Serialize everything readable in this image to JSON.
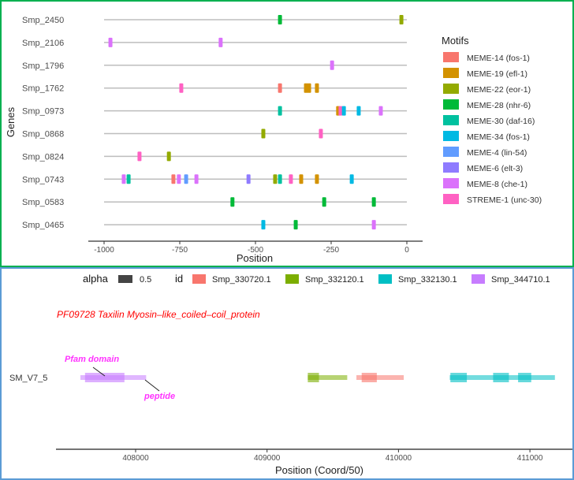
{
  "chart_data": [
    {
      "type": "motif-track",
      "xlabel": "Position",
      "ylabel": "Genes",
      "xlim": [
        -1050,
        10
      ],
      "xticks": [
        -1000,
        -750,
        -500,
        -250,
        0
      ],
      "xtick_labels": [
        "-1000",
        "-750",
        "-500",
        "-250",
        "0"
      ],
      "legend_title": "Motifs",
      "legend_position": "right",
      "legend": [
        {
          "name": "MEME-14 (fos-1)",
          "color": "#F8766D"
        },
        {
          "name": "MEME-19 (efl-1)",
          "color": "#D39200"
        },
        {
          "name": "MEME-22 (eor-1)",
          "color": "#93AA00"
        },
        {
          "name": "MEME-28 (nhr-6)",
          "color": "#00BA38"
        },
        {
          "name": "MEME-30 (daf-16)",
          "color": "#00C19F"
        },
        {
          "name": "MEME-34 (fos-1)",
          "color": "#00B9E3"
        },
        {
          "name": "MEME-4 (lin-54)",
          "color": "#619CFF"
        },
        {
          "name": "MEME-6 (elt-3)",
          "color": "#8F7BFF"
        },
        {
          "name": "MEME-8 (che-1)",
          "color": "#DB72FB"
        },
        {
          "name": "STREME-1 (unc-30)",
          "color": "#FF61C3"
        }
      ],
      "genes": [
        {
          "name": "Smp_2450",
          "motifs": [
            [
              -419,
              3
            ],
            [
              -18,
              2
            ]
          ]
        },
        {
          "name": "Smp_2106",
          "motifs": [
            [
              -979,
              8
            ],
            [
              -615,
              8
            ]
          ]
        },
        {
          "name": "Smp_1796",
          "motifs": [
            [
              -247,
              8
            ]
          ]
        },
        {
          "name": "Smp_1762",
          "motifs": [
            [
              -745,
              9
            ],
            [
              -419,
              0
            ],
            [
              -328,
              1
            ],
            [
              -297,
              1
            ]
          ]
        },
        {
          "name": "Smp_0973",
          "motifs": [
            [
              -419,
              4
            ],
            [
              -227,
              1
            ],
            [
              -219,
              9
            ],
            [
              -208,
              5
            ],
            [
              -159,
              5
            ],
            [
              -86,
              8
            ]
          ]
        },
        {
          "name": "Smp_0868",
          "motifs": [
            [
              -474,
              2
            ],
            [
              -284,
              9
            ]
          ]
        },
        {
          "name": "Smp_0824",
          "motifs": [
            [
              -883,
              9
            ],
            [
              -786,
              2
            ]
          ]
        },
        {
          "name": "Smp_0743",
          "motifs": [
            [
              -935,
              8
            ],
            [
              -919,
              4
            ],
            [
              -771,
              0
            ],
            [
              -753,
              8
            ],
            [
              -729,
              6
            ],
            [
              -695,
              8
            ],
            [
              -523,
              7
            ],
            [
              -435,
              2
            ],
            [
              -419,
              4
            ],
            [
              -383,
              9
            ],
            [
              -349,
              1
            ],
            [
              -297,
              1
            ],
            [
              -182,
              5
            ]
          ]
        },
        {
          "name": "Smp_0583",
          "motifs": [
            [
              -576,
              3
            ],
            [
              -273,
              3
            ],
            [
              -109,
              3
            ]
          ]
        },
        {
          "name": "Smp_0465",
          "motifs": [
            [
              -474,
              5
            ],
            [
              -367,
              3
            ],
            [
              -109,
              8
            ]
          ]
        }
      ]
    },
    {
      "type": "gene-track",
      "title": "PF09728  Taxilin  Myosin–like_coiled–coil_protein",
      "xlabel": "Position (Coord/50)",
      "xlim": [
        407430,
        411340
      ],
      "xticks": [
        408000,
        409000,
        410000,
        411000
      ],
      "xtick_labels": [
        "408000",
        "409000",
        "410000",
        "411000"
      ],
      "track": "SM_V7_5",
      "legend_position": "top",
      "alpha_legend": {
        "title": "alpha",
        "value": "0.5"
      },
      "id_legend_title": "id",
      "series": [
        {
          "name": "Smp_330720.1",
          "color": "#F8766D",
          "span": [
            409680,
            410040
          ],
          "domains": [
            [
              409720,
              409835
            ]
          ]
        },
        {
          "name": "Smp_332120.1",
          "color": "#7CAE00",
          "span": [
            409310,
            409610
          ],
          "domains": [
            [
              409310,
              409395
            ]
          ]
        },
        {
          "name": "Smp_332130.1",
          "color": "#00BFC4",
          "span": [
            410390,
            411190
          ],
          "domains": [
            [
              410395,
              410520
            ],
            [
              410720,
              410840
            ],
            [
              410910,
              411010
            ]
          ]
        },
        {
          "name": "Smp_344710.1",
          "color": "#C77CFF",
          "span": [
            407580,
            408080
          ],
          "domains": [
            [
              407615,
              407915
            ]
          ]
        }
      ],
      "annotations": [
        {
          "label": "Pfam domain",
          "color": "#FF33FF"
        },
        {
          "label": "peptide",
          "color": "#FF33FF"
        }
      ]
    }
  ]
}
